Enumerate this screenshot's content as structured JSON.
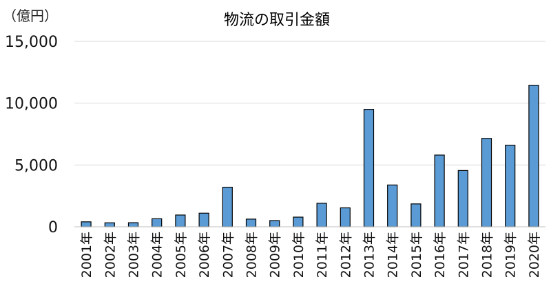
{
  "chart_data": {
    "type": "bar",
    "title": "物流の取引金額",
    "unit_label": "（億円）",
    "xlabel": "",
    "ylabel": "",
    "ylim": [
      0,
      15000
    ],
    "yticks": [
      0,
      5000,
      10000,
      15000
    ],
    "ytick_labels": [
      "0",
      "5,000",
      "10,000",
      "15,000"
    ],
    "grid": true,
    "categories": [
      "2001年",
      "2002年",
      "2003年",
      "2004年",
      "2005年",
      "2006年",
      "2007年",
      "2008年",
      "2009年",
      "2010年",
      "2011年",
      "2012年",
      "2013年",
      "2014年",
      "2015年",
      "2016年",
      "2017年",
      "2018年",
      "2019年",
      "2020年"
    ],
    "values": [
      400,
      320,
      330,
      650,
      950,
      1100,
      3200,
      620,
      500,
      780,
      1900,
      1530,
      9500,
      3380,
      1850,
      5800,
      4550,
      7150,
      6600,
      11450
    ],
    "colors": {
      "bar": "#5b9bd5",
      "grid": "#d9d9d9"
    }
  }
}
